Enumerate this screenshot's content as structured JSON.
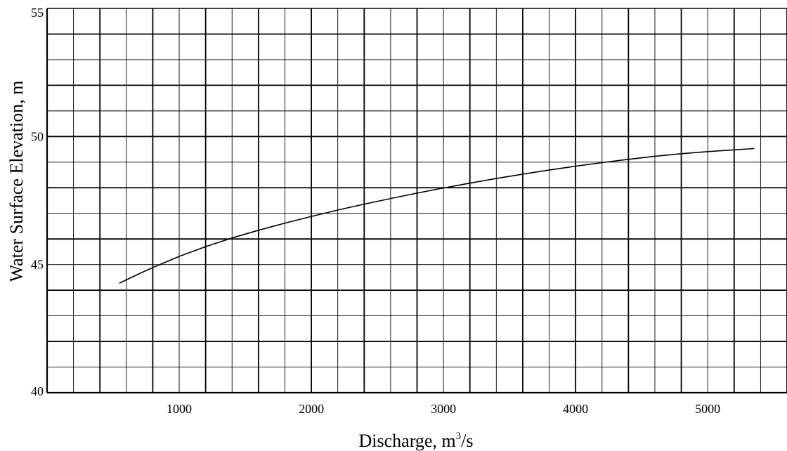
{
  "chart_data": {
    "type": "line",
    "title": "",
    "xlabel": "Discharge, m",
    "xlabel_superscript": "3",
    "xlabel_suffix": "/s",
    "ylabel": "Water Surface Elevation, m",
    "xlim": [
      0,
      5600
    ],
    "ylim": [
      40,
      55
    ],
    "x_ticks": [
      1000,
      2000,
      3000,
      4000,
      5000
    ],
    "x_tick_labels": [
      "1000",
      "2000",
      "3000",
      "4000",
      "5000"
    ],
    "y_ticks": [
      40,
      45,
      50,
      55
    ],
    "y_tick_labels": [
      "40",
      "45",
      "50",
      "55"
    ],
    "grid": true,
    "x_grid_minor_step": 200,
    "x_grid_major_step": 400,
    "y_grid_minor_step": 1,
    "y_grid_major_step": 2,
    "line_color": "#000000",
    "grid_color": "#000000",
    "series": [
      {
        "x": [
          550,
          700,
          820,
          1000,
          1200,
          1400,
          1600,
          1800,
          2000,
          2200,
          2400,
          2600,
          2800,
          3000,
          3200,
          3400,
          3600,
          3800,
          4000,
          4200,
          4400,
          4600,
          4800,
          5000,
          5200,
          5350
        ],
        "y": [
          44.28,
          44.65,
          44.93,
          45.32,
          45.7,
          46.04,
          46.34,
          46.62,
          46.88,
          47.13,
          47.36,
          47.58,
          47.79,
          47.99,
          48.18,
          48.36,
          48.53,
          48.69,
          48.84,
          48.98,
          49.11,
          49.23,
          49.33,
          49.41,
          49.48,
          49.53
        ]
      }
    ]
  }
}
